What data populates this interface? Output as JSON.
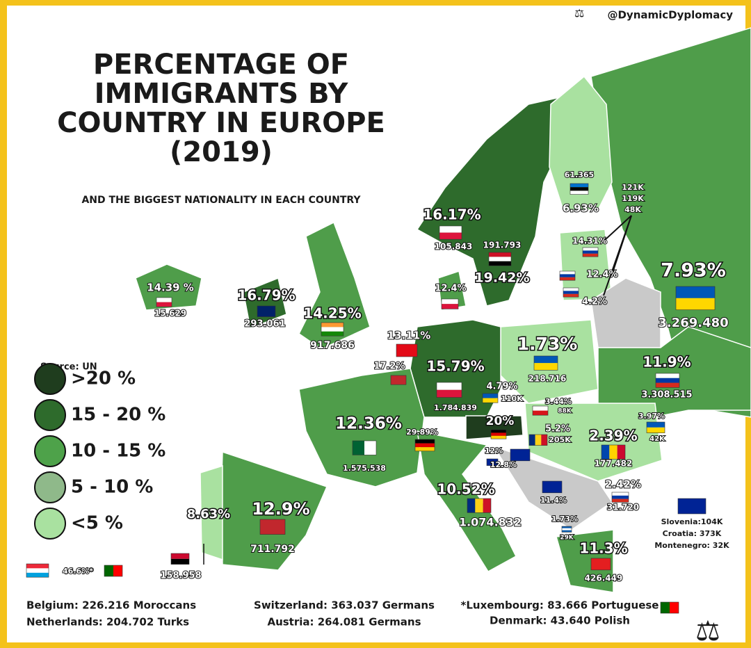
{
  "header": {
    "handle": "@DynamicDyplomacy",
    "title": [
      "PERCENTAGE OF",
      "IMMIGRANTS BY",
      "COUNTRY IN EUROPE",
      "(2019)"
    ],
    "subtitle": "AND THE BIGGEST NATIONALITY IN EACH COUNTRY",
    "source": "Source: UN"
  },
  "legend": [
    ">20 %",
    "15 - 20 %",
    "10 - 15 %",
    "5 - 10 %",
    "<5 %"
  ],
  "labels": [
    {
      "pct": "14.39 %",
      "count": "15.629"
    },
    {
      "pct": "16.79%",
      "count": "293.061"
    },
    {
      "pct": "14.25%",
      "count": "917.686"
    },
    {
      "pct": "16.17%",
      "count": "105.843"
    },
    {
      "pct": "19.42%",
      "count": "191.793"
    },
    {
      "pct": "6.93%",
      "count": "61.365"
    },
    {
      "pct": "14.31%"
    },
    {
      "pct": "12.4%"
    },
    {
      "pct": "4.2%"
    },
    {
      "pct": "12.4%"
    },
    {
      "pct": "13.11%"
    },
    {
      "pct": "17.2%"
    },
    {
      "pct": "15.79%",
      "count": "1.784.839"
    },
    {
      "pct": "1.73%",
      "count": "218.716"
    },
    {
      "pct": "7.93%",
      "count": "3.269.480"
    },
    {
      "pct": "11.9%",
      "count": "3.308.515"
    },
    {
      "pct": "4.79%",
      "count": "110K"
    },
    {
      "pct": "3.44%",
      "count": "88K"
    },
    {
      "pct": "20%"
    },
    {
      "pct": "29.89%"
    },
    {
      "pct": "5.2%",
      "count": "205K"
    },
    {
      "pct": "3.97%",
      "count": "42K"
    },
    {
      "pct": "2.39%",
      "count": "177.482"
    },
    {
      "pct": "2.42%",
      "count": "31.720"
    },
    {
      "pct": "12%"
    },
    {
      "pct": "12.8%"
    },
    {
      "pct": "11.4%"
    },
    {
      "pct": "1.73%",
      "count": "29K"
    },
    {
      "pct": "11.3%",
      "count": "426.449"
    },
    {
      "pct": "10.52%",
      "count": "1.074.832"
    },
    {
      "pct": "12.36%",
      "count": "1.575.538"
    },
    {
      "pct": "12.9%",
      "count": "711.792"
    },
    {
      "pct": "8.63%",
      "count": "158.958"
    },
    {
      "pct": "46.6%*"
    }
  ],
  "baltic_counts": [
    "121K",
    "119K",
    "48K"
  ],
  "balkan_box": [
    "Slovenia:104K",
    "Croatia: 373K",
    "Montenegro: 32K"
  ],
  "footer": [
    "Belgium: 226.216 Moroccans",
    "Netherlands: 204.702 Turks",
    "Switzerland: 363.037 Germans",
    "Austria: 264.081 Germans",
    "*Luxembourg: 83.666 Portuguese",
    "Denmark: 43.640 Polish"
  ]
}
